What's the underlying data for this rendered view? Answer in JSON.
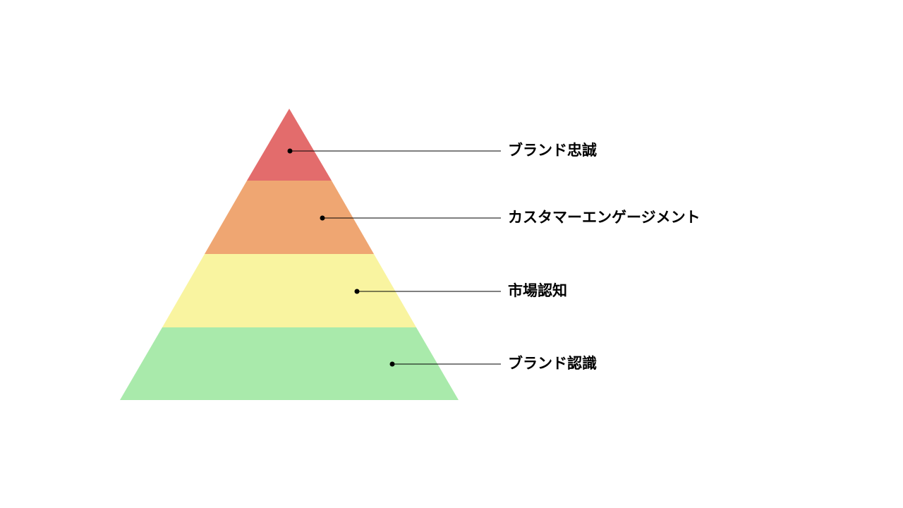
{
  "pyramid": {
    "layers": [
      {
        "label": "ブランド忠誠",
        "color": "#e36c6c"
      },
      {
        "label": "カスタマーエンゲージメント",
        "color": "#efa672"
      },
      {
        "label": "市場認知",
        "color": "#f9f4a0"
      },
      {
        "label": "ブランド認識",
        "color": "#a9eaab"
      }
    ],
    "connector_color": "#000000"
  }
}
